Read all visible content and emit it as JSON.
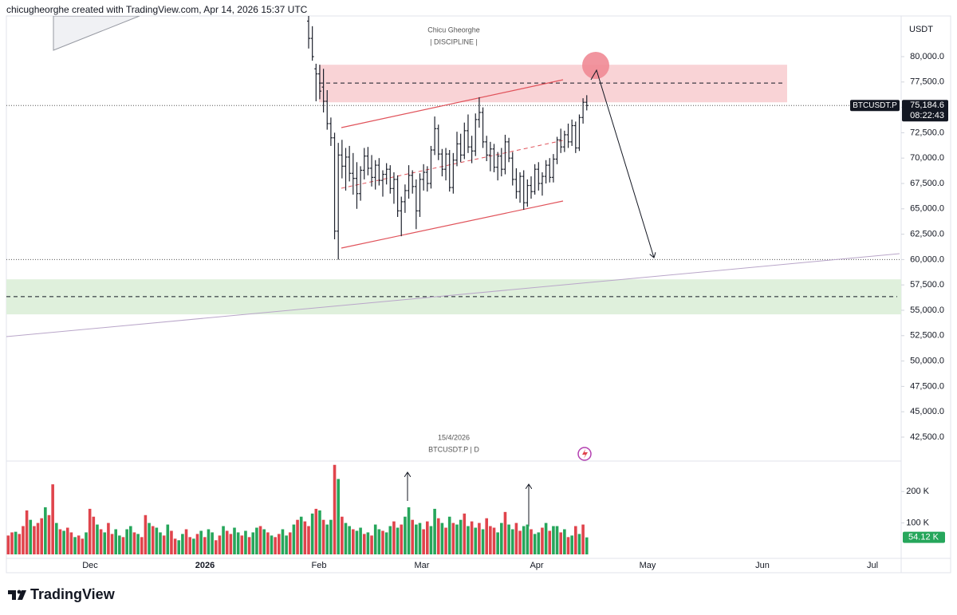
{
  "chart_data": {
    "type": "candlestick",
    "header": "chicugheorghe created with TradingView.com, Apr 14, 2026 15:37 UTC",
    "currency": "USDT",
    "author": "Chicu Gheorghe",
    "tagline": "|  DISCIPLINE  |",
    "date_label": "15/4/2026",
    "symbol_label": "BTCUSDT.P | D",
    "symbol": "BTCUSDT.P",
    "countdown": "08:22:43",
    "brand": "TradingView",
    "bar_color": "#1e222d",
    "ylim": [
      40140,
      84010
    ],
    "yticks": [
      {
        "value": 80000,
        "label": "80,000.0"
      },
      {
        "value": 77500,
        "label": "77,500.0"
      },
      {
        "value": 75000,
        "label": "75,000.0"
      },
      {
        "value": 72500,
        "label": "72,500.0"
      },
      {
        "value": 70000,
        "label": "70,000.0"
      },
      {
        "value": 67500,
        "label": "67,500.0"
      },
      {
        "value": 65000,
        "label": "65,000.0"
      },
      {
        "value": 62500,
        "label": "62,500.0"
      },
      {
        "value": 60000,
        "label": "60,000.0"
      },
      {
        "value": 57500,
        "label": "57,500.0"
      },
      {
        "value": 55000,
        "label": "55,000.0"
      },
      {
        "value": 52500,
        "label": "52,500.0"
      },
      {
        "value": 50000,
        "label": "50,000.0"
      },
      {
        "value": 47500,
        "label": "47,500.0"
      },
      {
        "value": 45000,
        "label": "45,000.0"
      },
      {
        "value": 42500,
        "label": "42,500.0"
      }
    ],
    "xticks": [
      "Dec",
      "2026",
      "Feb",
      "Mar",
      "Apr",
      "May",
      "Jun",
      "Jul"
    ],
    "last_price": {
      "value": 75184.6,
      "label": "75,184.6"
    },
    "horizontal_lines": [
      60000
    ],
    "zones": [
      {
        "low": 75500,
        "high": 79200,
        "mid": 77400,
        "color": "#f9d3d6"
      },
      {
        "low": 54600,
        "high": 58050,
        "mid": 56350,
        "color": "#dff0dc"
      }
    ],
    "candles": [
      [
        83500,
        84500,
        80800,
        81800
      ],
      [
        81800,
        83000,
        79600,
        80000
      ],
      [
        78800,
        79300,
        75600,
        78300
      ],
      [
        78300,
        79200,
        75800,
        76600
      ],
      [
        77000,
        78800,
        74500,
        75600
      ],
      [
        75600,
        76700,
        72800,
        73400
      ],
      [
        73400,
        74000,
        71200,
        72000
      ],
      [
        72000,
        72500,
        62000,
        62800
      ],
      [
        62800,
        71500,
        60000,
        70300
      ],
      [
        70300,
        71800,
        68000,
        69200
      ],
      [
        69200,
        71000,
        66800,
        70100
      ],
      [
        70100,
        71200,
        67700,
        68500
      ],
      [
        68500,
        70500,
        66400,
        68000
      ],
      [
        68000,
        69600,
        65000,
        66500
      ],
      [
        66500,
        69200,
        65800,
        68800
      ],
      [
        68800,
        71000,
        67900,
        70200
      ],
      [
        70200,
        71100,
        68300,
        69000
      ],
      [
        69000,
        70300,
        67200,
        68100
      ],
      [
        68100,
        69800,
        66900,
        69300
      ],
      [
        69300,
        70000,
        67300,
        67800
      ],
      [
        67800,
        68800,
        66200,
        68400
      ],
      [
        68400,
        69500,
        67400,
        68900
      ],
      [
        68900,
        69300,
        66500,
        67000
      ],
      [
        67000,
        68600,
        65500,
        67900
      ],
      [
        67900,
        68300,
        64200,
        64800
      ],
      [
        64800,
        66200,
        62300,
        65700
      ],
      [
        65700,
        67400,
        64600,
        66800
      ],
      [
        66800,
        69300,
        66000,
        68300
      ],
      [
        68300,
        68800,
        66500,
        67200
      ],
      [
        67200,
        67900,
        63000,
        64800
      ],
      [
        64800,
        68500,
        64200,
        67900
      ],
      [
        67900,
        69400,
        66800,
        68600
      ],
      [
        68600,
        69200,
        66700,
        67500
      ],
      [
        67500,
        71200,
        67000,
        70800
      ],
      [
        70800,
        74100,
        70300,
        72900
      ],
      [
        72900,
        73300,
        69800,
        70400
      ],
      [
        70400,
        70900,
        68200,
        68900
      ],
      [
        68900,
        71000,
        67800,
        70400
      ],
      [
        70400,
        70800,
        66700,
        67100
      ],
      [
        67100,
        70500,
        66500,
        69800
      ],
      [
        69800,
        72600,
        69200,
        71400
      ],
      [
        71400,
        72400,
        69600,
        70300
      ],
      [
        70300,
        73500,
        69900,
        72700
      ],
      [
        72700,
        74300,
        70500,
        71100
      ],
      [
        71100,
        72200,
        69500,
        70700
      ],
      [
        70700,
        74400,
        70200,
        73800
      ],
      [
        73800,
        76000,
        73000,
        74500
      ],
      [
        74500,
        75000,
        71000,
        71600
      ],
      [
        71600,
        72200,
        69700,
        70300
      ],
      [
        70300,
        71600,
        68700,
        70900
      ],
      [
        70900,
        71400,
        68600,
        69100
      ],
      [
        69100,
        70600,
        67800,
        70200
      ],
      [
        70200,
        71000,
        68200,
        68900
      ],
      [
        68900,
        72300,
        68400,
        71600
      ],
      [
        71600,
        72000,
        69600,
        70000
      ],
      [
        70000,
        70600,
        67300,
        67900
      ],
      [
        67900,
        69000,
        66000,
        66700
      ],
      [
        66700,
        68600,
        65600,
        68200
      ],
      [
        68200,
        68800,
        64900,
        65600
      ],
      [
        65600,
        67900,
        65200,
        67300
      ],
      [
        67300,
        68200,
        66000,
        66700
      ],
      [
        66700,
        69400,
        66400,
        68900
      ],
      [
        68900,
        69600,
        66800,
        67500
      ],
      [
        67500,
        68600,
        66300,
        68200
      ],
      [
        68200,
        69800,
        67500,
        69300
      ],
      [
        69300,
        70000,
        67600,
        68100
      ],
      [
        68100,
        70400,
        67600,
        69900
      ],
      [
        69900,
        72100,
        69400,
        71800
      ],
      [
        71800,
        72900,
        70500,
        71100
      ],
      [
        71100,
        72700,
        70600,
        72300
      ],
      [
        72300,
        73400,
        71000,
        71600
      ],
      [
        71600,
        73800,
        71200,
        73200
      ],
      [
        73200,
        73600,
        70500,
        71000
      ],
      [
        71000,
        74300,
        70700,
        74000
      ],
      [
        74000,
        75900,
        73400,
        75500
      ],
      [
        75500,
        76200,
        74700,
        75184.6
      ]
    ],
    "volume": {
      "up_color": "#26a65b",
      "down_color": "#e0444c",
      "ylim": [
        0,
        292000
      ],
      "yticks": [
        {
          "value": 200000,
          "label": "200 K"
        },
        {
          "value": 100000,
          "label": "100 K"
        }
      ],
      "last": {
        "value": 54120,
        "label": "54.12 K"
      },
      "values": [
        60000,
        70000,
        72000,
        65000,
        90000,
        140000,
        110000,
        90000,
        100000,
        115000,
        150000,
        125000,
        223000,
        100000,
        80000,
        75000,
        85000,
        70000,
        55000,
        60000,
        50000,
        70000,
        145000,
        120000,
        95000,
        80000,
        70000,
        100000,
        65000,
        80000,
        60000,
        55000,
        80000,
        90000,
        70000,
        65000,
        55000,
        125000,
        100000,
        90000,
        85000,
        70000,
        60000,
        95000,
        75000,
        50000,
        45000,
        65000,
        80000,
        55000,
        50000,
        65000,
        75000,
        55000,
        80000,
        70000,
        45000,
        60000,
        90000,
        75000,
        65000,
        85000,
        70000,
        60000,
        75000,
        55000,
        70000,
        85000,
        90000,
        80000,
        70000,
        60000,
        55000,
        65000,
        80000,
        60000,
        70000,
        95000,
        110000,
        120000,
        105000,
        90000,
        130000,
        145000,
        140000,
        110000,
        95000,
        110000,
        285000,
        240000,
        120000,
        100000,
        90000,
        80000,
        75000,
        85000,
        65000,
        70000,
        60000,
        95000,
        80000,
        75000,
        70000,
        90000,
        105000,
        85000,
        95000,
        120000,
        150000,
        110000,
        95000,
        100000,
        80000,
        105000,
        90000,
        145000,
        115000,
        100000,
        85000,
        120000,
        100000,
        95000,
        110000,
        130000,
        90000,
        105000,
        85000,
        100000,
        80000,
        115000,
        90000,
        85000,
        70000,
        100000,
        135000,
        95000,
        80000,
        100000,
        75000,
        90000,
        95000,
        80000,
        65000,
        70000,
        85000,
        100000,
        75000,
        90000,
        90000,
        70000,
        80000,
        55000,
        60000,
        90000,
        65000,
        95000,
        54120
      ],
      "up": [
        false,
        false,
        true,
        false,
        false,
        false,
        true,
        false,
        false,
        false,
        true,
        false,
        false,
        true,
        false,
        true,
        false,
        false,
        true,
        false,
        false,
        true,
        false,
        false,
        true,
        false,
        true,
        false,
        false,
        true,
        true,
        false,
        true,
        true,
        false,
        true,
        false,
        false,
        true,
        false,
        true,
        true,
        false,
        true,
        false,
        false,
        true,
        true,
        false,
        false,
        true,
        false,
        true,
        false,
        true,
        true,
        false,
        false,
        true,
        false,
        false,
        true,
        true,
        false,
        true,
        false,
        true,
        true,
        false,
        true,
        false,
        true,
        false,
        false,
        true,
        true,
        false,
        true,
        false,
        true,
        false,
        false,
        true,
        false,
        true,
        false,
        true,
        true,
        false,
        true,
        false,
        true,
        true,
        false,
        true,
        true,
        false,
        true,
        false,
        true,
        true,
        false,
        true,
        true,
        false,
        true,
        false,
        true,
        true,
        false,
        true,
        true,
        false,
        false,
        true,
        true,
        false,
        true,
        false,
        true,
        false,
        true,
        true,
        false,
        true,
        false,
        true,
        false,
        true,
        false,
        false,
        false,
        true,
        true,
        false,
        true,
        true,
        false,
        false,
        true,
        true,
        false,
        true,
        true,
        false,
        true,
        false,
        true,
        true,
        false,
        true,
        false,
        true,
        false,
        true,
        false,
        true
      ]
    }
  }
}
